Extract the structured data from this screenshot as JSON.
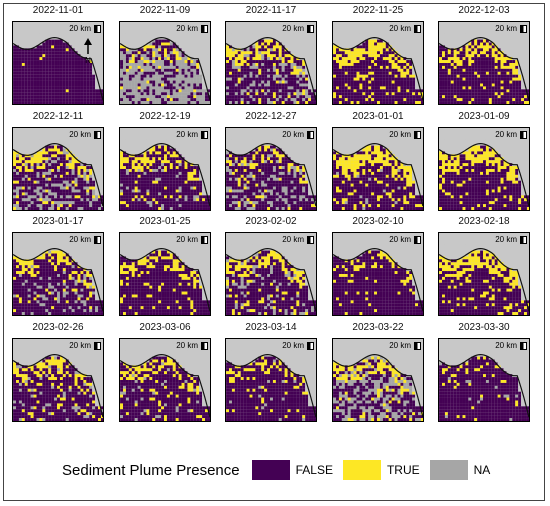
{
  "panels": [
    {
      "date": "2022-11-01",
      "yellow": 0.02,
      "gray": 0.0
    },
    {
      "date": "2022-11-09",
      "yellow": 0.2,
      "gray": 0.45
    },
    {
      "date": "2022-11-17",
      "yellow": 0.25,
      "gray": 0.2
    },
    {
      "date": "2022-11-25",
      "yellow": 0.3,
      "gray": 0.0
    },
    {
      "date": "2022-12-03",
      "yellow": 0.25,
      "gray": 0.0
    },
    {
      "date": "2022-12-11",
      "yellow": 0.25,
      "gray": 0.2
    },
    {
      "date": "2022-12-19",
      "yellow": 0.18,
      "gray": 0.05
    },
    {
      "date": "2022-12-27",
      "yellow": 0.18,
      "gray": 0.15
    },
    {
      "date": "2023-01-01",
      "yellow": 0.35,
      "gray": 0.02
    },
    {
      "date": "2023-01-09",
      "yellow": 0.3,
      "gray": 0.0
    },
    {
      "date": "2023-01-17",
      "yellow": 0.2,
      "gray": 0.1
    },
    {
      "date": "2023-01-25",
      "yellow": 0.2,
      "gray": 0.0
    },
    {
      "date": "2023-02-02",
      "yellow": 0.25,
      "gray": 0.12
    },
    {
      "date": "2023-02-10",
      "yellow": 0.12,
      "gray": 0.0
    },
    {
      "date": "2023-02-18",
      "yellow": 0.3,
      "gray": 0.0
    },
    {
      "date": "2023-02-26",
      "yellow": 0.25,
      "gray": 0.08
    },
    {
      "date": "2023-03-06",
      "yellow": 0.2,
      "gray": 0.05
    },
    {
      "date": "2023-03-14",
      "yellow": 0.15,
      "gray": 0.02
    },
    {
      "date": "2023-03-22",
      "yellow": 0.3,
      "gray": 0.25
    },
    {
      "date": "2023-03-30",
      "yellow": 0.08,
      "gray": 0.02
    }
  ],
  "scale_label": "20 km",
  "north_label": "N",
  "legend": {
    "title": "Sediment Plume Presence",
    "items": [
      {
        "label": "FALSE",
        "color": "#440154"
      },
      {
        "label": "TRUE",
        "color": "#fde725"
      },
      {
        "label": "NA",
        "color": "#a6a6a6"
      }
    ]
  },
  "colors": {
    "land": "#c8c8c8",
    "water": "#440154",
    "plume": "#fde725",
    "na": "#a6a6a6"
  }
}
